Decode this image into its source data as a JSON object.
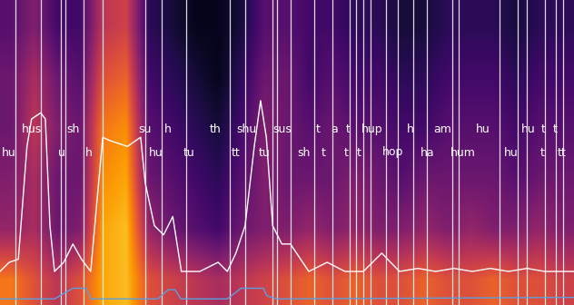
{
  "chart_data": {
    "type": "heatmap",
    "xlim": [
      0,
      100
    ],
    "ylim": [
      0,
      100
    ],
    "tick_labels": false,
    "cell_range": [
      0,
      1
    ],
    "cells": [
      [
        0.7,
        0.6,
        0.5,
        0.6,
        0.8,
        0.85,
        0.6,
        0.55,
        0.5,
        0.45,
        0.5,
        0.55,
        0.6,
        0.65,
        0.6,
        0.65,
        0.6,
        0.6,
        0.65,
        0.6,
        0.6,
        0.65,
        0.6,
        0.6,
        0.55
      ],
      [
        0.4,
        0.45,
        0.3,
        0.35,
        0.8,
        0.85,
        0.4,
        0.3,
        0.25,
        0.2,
        0.3,
        0.35,
        0.35,
        0.4,
        0.35,
        0.4,
        0.35,
        0.35,
        0.4,
        0.35,
        0.4,
        0.35,
        0.35,
        0.4,
        0.35
      ],
      [
        0.35,
        0.45,
        0.3,
        0.3,
        0.75,
        0.8,
        0.3,
        0.25,
        0.2,
        0.15,
        0.25,
        0.35,
        0.3,
        0.3,
        0.3,
        0.35,
        0.3,
        0.25,
        0.3,
        0.3,
        0.3,
        0.3,
        0.25,
        0.3,
        0.3
      ],
      [
        0.3,
        0.5,
        0.35,
        0.3,
        0.7,
        0.75,
        0.25,
        0.2,
        0.15,
        0.1,
        0.2,
        0.35,
        0.3,
        0.25,
        0.3,
        0.25,
        0.25,
        0.2,
        0.2,
        0.25,
        0.25,
        0.25,
        0.2,
        0.25,
        0.25
      ],
      [
        0.3,
        0.45,
        0.3,
        0.25,
        0.6,
        0.65,
        0.2,
        0.15,
        0.1,
        0.05,
        0.15,
        0.3,
        0.3,
        0.2,
        0.25,
        0.2,
        0.2,
        0.15,
        0.15,
        0.2,
        0.2,
        0.2,
        0.15,
        0.2,
        0.2
      ],
      [
        0.25,
        0.35,
        0.2,
        0.2,
        0.5,
        0.55,
        0.15,
        0.1,
        0.05,
        0.05,
        0.1,
        0.25,
        0.25,
        0.2,
        0.2,
        0.15,
        0.15,
        0.1,
        0.1,
        0.15,
        0.15,
        0.15,
        0.1,
        0.15,
        0.15
      ]
    ],
    "boundaries": [
      2.7,
      7.1,
      10.6,
      11.4,
      14.6,
      17.9,
      25.3,
      28.2,
      32.4,
      40.0,
      42.7,
      47.5,
      48.3,
      50.6,
      54.7,
      57.9,
      60.9,
      62.0,
      63.3,
      64.6,
      67.2,
      69.3,
      72.0,
      74.4,
      78.8,
      79.9,
      87.0,
      90.2,
      91.8,
      94.9,
      96.8,
      98.1
    ],
    "tiers": [
      [
        {
          "text": "hus",
          "x": 5.5
        },
        {
          "text": "sh",
          "x": 12.7
        },
        {
          "text": "su",
          "x": 25.3
        },
        {
          "text": "h",
          "x": 29.3
        },
        {
          "text": "th",
          "x": 37.5
        },
        {
          "text": "shu",
          "x": 43.0
        },
        {
          "text": "sus",
          "x": 49.1
        },
        {
          "text": "t",
          "x": 55.4
        },
        {
          "text": "a",
          "x": 58.2
        },
        {
          "text": "t",
          "x": 60.6
        },
        {
          "text": "hup",
          "x": 64.9
        },
        {
          "text": "h",
          "x": 71.5
        },
        {
          "text": "am",
          "x": 77.1
        },
        {
          "text": "hu",
          "x": 84.2
        },
        {
          "text": "hu",
          "x": 92.1
        },
        {
          "text": "t",
          "x": 94.6
        },
        {
          "text": "t",
          "x": 96.7
        }
      ],
      [
        {
          "text": "hu",
          "x": 1.6
        },
        {
          "text": "u",
          "x": 10.8
        },
        {
          "text": "h",
          "x": 15.5
        },
        {
          "text": "hu",
          "x": 27.2
        },
        {
          "text": "tu",
          "x": 32.9
        },
        {
          "text": "tt",
          "x": 41.1
        },
        {
          "text": "tu",
          "x": 46.0
        },
        {
          "text": "sh",
          "x": 53.0
        },
        {
          "text": "t",
          "x": 56.3
        },
        {
          "text": "t",
          "x": 60.3
        },
        {
          "text": "t",
          "x": 62.5
        },
        {
          "text": "hop",
          "x": 68.5
        },
        {
          "text": "ha",
          "x": 74.4
        },
        {
          "text": "hum",
          "x": 80.7
        },
        {
          "text": "hu",
          "x": 89.1
        },
        {
          "text": "t",
          "x": 94.5
        },
        {
          "text": "tt",
          "x": 97.8
        }
      ]
    ],
    "series": [
      {
        "color": "#ffffff",
        "type": "line",
        "x": [
          0,
          1.6,
          3.2,
          4.7,
          5.5,
          7.1,
          7.9,
          8.7,
          9.5,
          11.1,
          12.7,
          14.2,
          15.8,
          17.9,
          19.0,
          22.2,
          24.5,
          25.3,
          26.9,
          28.5,
          30.1,
          31.6,
          34.8,
          38.0,
          39.6,
          41.1,
          42.7,
          44.3,
          45.4,
          46.4,
          47.5,
          49.1,
          50.6,
          53.8,
          57.0,
          60.1,
          63.3,
          66.5,
          69.6,
          72.8,
          75.9,
          79.1,
          82.3,
          85.4,
          88.6,
          91.8,
          94.9,
          100
        ],
        "values": [
          11,
          14,
          15,
          52,
          61,
          63,
          61,
          26,
          11,
          14,
          20,
          15,
          11,
          55,
          54,
          52,
          55,
          40,
          26,
          23,
          29,
          11,
          11,
          14,
          11,
          17,
          26,
          52,
          67,
          55,
          26,
          20,
          20,
          11,
          14,
          11,
          11,
          17,
          11,
          12,
          11,
          12,
          11,
          12,
          11,
          12,
          11,
          11
        ]
      },
      {
        "color": "#5aa0e0",
        "type": "line",
        "x": [
          0,
          9.5,
          12.7,
          15.0,
          15.8,
          27.5,
          29.3,
          30.5,
          31.5,
          39.6,
          42.0,
          45.9,
          46.5,
          48.3,
          100
        ],
        "values": [
          2,
          2,
          5.5,
          5.5,
          2,
          2,
          5,
          5,
          2,
          2,
          5.5,
          5.5,
          3,
          2,
          2.5
        ]
      }
    ]
  }
}
